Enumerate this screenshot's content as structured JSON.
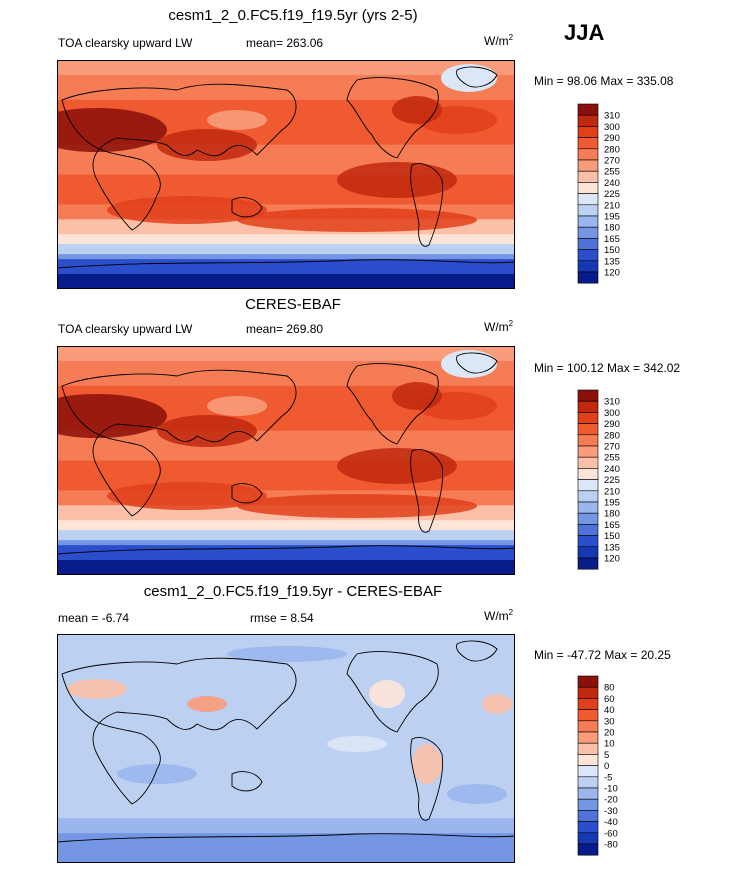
{
  "season": "JJA",
  "units_base": "W/m",
  "units_exp": "2",
  "panels": [
    {
      "title": "cesm1_2_0.FC5.f19_f19.5yr (yrs 2-5)",
      "left_label": "TOA clearsky upward LW",
      "center_label": "mean= 263.06",
      "minmax": "Min =  98.06 Max = 335.08"
    },
    {
      "title": "CERES-EBAF",
      "left_label": "TOA clearsky upward LW",
      "center_label": "mean= 269.80",
      "minmax": "Min = 100.12 Max = 342.02"
    },
    {
      "title": "cesm1_2_0.FC5.f19_f19.5yr - CERES-EBAF",
      "left_label": "mean =  -6.74",
      "center_label": "rmse =   8.54",
      "minmax": "Min = -47.72 Max =  20.25"
    }
  ],
  "chart_data": [
    {
      "type": "heatmap",
      "title": "cesm1_2_0.FC5.f19_f19.5yr (yrs 2-5)",
      "variable": "TOA clearsky upward LW",
      "units": "W/m2",
      "mean": 263.06,
      "min": 98.06,
      "max": 335.08,
      "colorbar_levels": [
        310,
        300,
        290,
        280,
        270,
        255,
        240,
        225,
        210,
        195,
        180,
        165,
        150,
        135,
        120
      ],
      "colorbar_colors": [
        "#8b0f0a",
        "#c1290f",
        "#e0401a",
        "#f05a30",
        "#f57c54",
        "#f89c7b",
        "#fbc0a7",
        "#fde4d8",
        "#dbe7f7",
        "#bcd0f2",
        "#9ab6ec",
        "#7596e3",
        "#4f73d8",
        "#2a4ecc",
        "#1638b2",
        "#071b8a"
      ]
    },
    {
      "type": "heatmap",
      "title": "CERES-EBAF",
      "variable": "TOA clearsky upward LW",
      "units": "W/m2",
      "mean": 269.8,
      "min": 100.12,
      "max": 342.02,
      "colorbar_levels": [
        310,
        300,
        290,
        280,
        270,
        255,
        240,
        225,
        210,
        195,
        180,
        165,
        150,
        135,
        120
      ],
      "colorbar_colors": [
        "#8b0f0a",
        "#c1290f",
        "#e0401a",
        "#f05a30",
        "#f57c54",
        "#f89c7b",
        "#fbc0a7",
        "#fde4d8",
        "#dbe7f7",
        "#bcd0f2",
        "#9ab6ec",
        "#7596e3",
        "#4f73d8",
        "#2a4ecc",
        "#1638b2",
        "#071b8a"
      ]
    },
    {
      "type": "heatmap",
      "title": "cesm1_2_0.FC5.f19_f19.5yr - CERES-EBAF",
      "units": "W/m2",
      "mean": -6.74,
      "rmse": 8.54,
      "min": -47.72,
      "max": 20.25,
      "colorbar_levels": [
        80,
        60,
        40,
        30,
        20,
        10,
        5,
        0,
        -5,
        -10,
        -20,
        -30,
        -40,
        -60,
        -80
      ],
      "colorbar_colors": [
        "#8b0f0a",
        "#c1290f",
        "#e0401a",
        "#f05a30",
        "#f57c54",
        "#f89c7b",
        "#fbc0a7",
        "#fde4d8",
        "#dbe7f7",
        "#bcd0f2",
        "#9ab6ec",
        "#7596e3",
        "#4f73d8",
        "#2a4ecc",
        "#1638b2",
        "#071b8a"
      ]
    }
  ]
}
